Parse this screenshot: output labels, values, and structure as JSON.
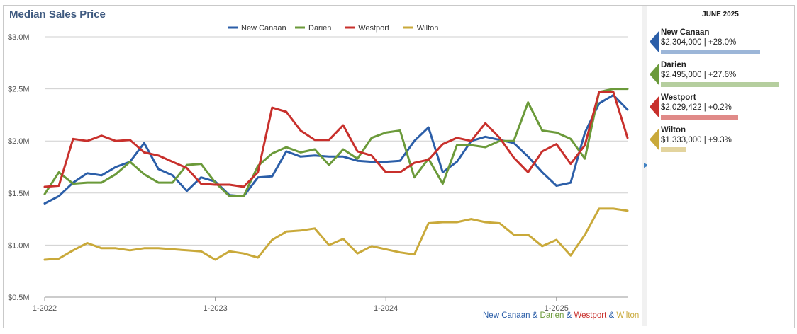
{
  "chart_data": {
    "type": "line",
    "title": "Median Sales Price",
    "x_tick_labels": [
      "1-2022",
      "1-2023",
      "1-2024",
      "1-2025"
    ],
    "y_tick_labels": [
      "$0.5M",
      "$1.0M",
      "$1.5M",
      "$2.0M",
      "$2.5M",
      "$3.0M"
    ],
    "ylim": [
      0.5,
      3.0
    ],
    "y_ticks": [
      0.5,
      1.0,
      1.5,
      2.0,
      2.5,
      3.0
    ],
    "x_start": "2022-01",
    "x_end": "2025-06",
    "grid": true,
    "legend_position": "top-center",
    "series": [
      {
        "name": "New Canaan",
        "color": "#2b5ea8",
        "values": [
          1.4,
          1.47,
          1.6,
          1.69,
          1.67,
          1.75,
          1.8,
          1.98,
          1.73,
          1.67,
          1.52,
          1.65,
          1.61,
          1.48,
          1.47,
          1.65,
          1.66,
          1.9,
          1.85,
          1.86,
          1.85,
          1.85,
          1.81,
          1.8,
          1.8,
          1.81,
          2.0,
          2.13,
          1.7,
          1.8,
          2.0,
          2.04,
          2.01,
          1.98,
          1.85,
          1.7,
          1.57,
          1.6,
          2.08,
          2.36,
          2.44,
          2.3
        ]
      },
      {
        "name": "Darien",
        "color": "#6b9a3a",
        "values": [
          1.49,
          1.7,
          1.59,
          1.6,
          1.6,
          1.68,
          1.8,
          1.68,
          1.6,
          1.6,
          1.77,
          1.78,
          1.6,
          1.47,
          1.47,
          1.76,
          1.88,
          1.94,
          1.89,
          1.92,
          1.77,
          1.92,
          1.83,
          2.03,
          2.08,
          2.1,
          1.65,
          1.83,
          1.59,
          1.96,
          1.96,
          1.94,
          2.0,
          2.0,
          2.37,
          2.1,
          2.08,
          2.02,
          1.83,
          2.47,
          2.5,
          2.5
        ]
      },
      {
        "name": "Westport",
        "color": "#c8302c",
        "values": [
          1.56,
          1.57,
          2.02,
          2.0,
          2.05,
          2.0,
          2.01,
          1.89,
          1.86,
          1.8,
          1.74,
          1.59,
          1.58,
          1.58,
          1.56,
          1.7,
          2.32,
          2.28,
          2.1,
          2.01,
          2.01,
          2.15,
          1.9,
          1.86,
          1.7,
          1.7,
          1.79,
          1.82,
          1.97,
          2.03,
          2.0,
          2.17,
          2.03,
          1.84,
          1.7,
          1.9,
          1.97,
          1.78,
          1.96,
          2.47,
          2.47,
          2.03
        ]
      },
      {
        "name": "Wilton",
        "color": "#c9a93a",
        "values": [
          0.86,
          0.87,
          0.95,
          1.02,
          0.97,
          0.97,
          0.95,
          0.97,
          0.97,
          0.96,
          0.95,
          0.94,
          0.86,
          0.94,
          0.92,
          0.88,
          1.05,
          1.13,
          1.14,
          1.16,
          1.0,
          1.06,
          0.92,
          0.99,
          0.96,
          0.93,
          0.91,
          1.21,
          1.22,
          1.22,
          1.25,
          1.22,
          1.21,
          1.1,
          1.1,
          0.99,
          1.05,
          0.9,
          1.1,
          1.35,
          1.35,
          1.33
        ]
      }
    ]
  },
  "legend": {
    "items": [
      {
        "label": "New Canaan",
        "color": "#2b5ea8"
      },
      {
        "label": "Darien",
        "color": "#6b9a3a"
      },
      {
        "label": "Westport",
        "color": "#c8302c"
      },
      {
        "label": "Wilton",
        "color": "#c9a93a"
      }
    ]
  },
  "sidebar": {
    "date": "JUNE 2025",
    "stats": [
      {
        "name": "New Canaan",
        "value": "$2,304,000 | +28.0%",
        "color": "#2b5ea8",
        "bar_color": "#9cb6d8",
        "bar_fraction": 0.8
      },
      {
        "name": "Darien",
        "value": "$2,495,000 | +27.6%",
        "color": "#6b9a3a",
        "bar_color": "#b5ce9e",
        "bar_fraction": 0.95
      },
      {
        "name": "Westport",
        "value": "$2,029,422 | +0.2%",
        "color": "#c8302c",
        "bar_color": "#e08a88",
        "bar_fraction": 0.62
      },
      {
        "name": "Wilton",
        "value": "$1,333,000 | +9.3%",
        "color": "#c9a93a",
        "bar_color": "#e3d49e",
        "bar_fraction": 0.2
      }
    ]
  },
  "credits": {
    "parts": [
      {
        "text": "New Canaan",
        "color": "#2b5ea8"
      },
      {
        "text": " & ",
        "color": "#2b5ea8"
      },
      {
        "text": "Darien",
        "color": "#6b9a3a"
      },
      {
        "text": " & ",
        "color": "#2b5ea8"
      },
      {
        "text": "Westport",
        "color": "#c8302c"
      },
      {
        "text": " & ",
        "color": "#2b5ea8"
      },
      {
        "text": "Wilton",
        "color": "#c9a93a"
      }
    ]
  }
}
